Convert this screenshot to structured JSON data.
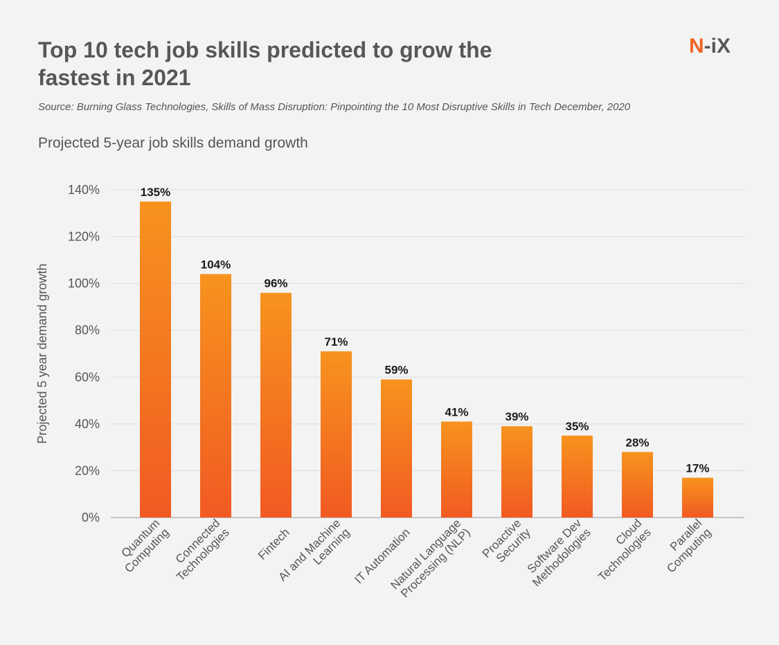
{
  "header": {
    "title": "Top 10 tech job skills predicted to grow the fastest in 2021",
    "source": "Source: Burning Glass Technologies, Skills of Mass Disruption: Pinpointing the 10 Most Disruptive Skills in Tech December, 2020",
    "subtitle": "Projected 5-year job skills demand growth",
    "logo_left": "N",
    "logo_right": "-iX"
  },
  "colors": {
    "bar_top": "#f7931e",
    "bar_bottom": "#f15a22",
    "gridline": "#dddddd",
    "axis": "#999999",
    "logo_accent": "#f26422"
  },
  "chart_data": {
    "type": "bar",
    "categories": [
      [
        "Quantum",
        "Computing"
      ],
      [
        "Connected",
        "Technologies"
      ],
      [
        "Fintech"
      ],
      [
        "AI and Machine",
        "Learning"
      ],
      [
        "IT Automation"
      ],
      [
        "Natural Language",
        "Processing (NLP)"
      ],
      [
        "Proactive",
        "Security"
      ],
      [
        "Software Dev",
        "Methodologies"
      ],
      [
        "Cloud",
        "Technologies"
      ],
      [
        "Parallel",
        "Computing"
      ]
    ],
    "values": [
      135,
      104,
      96,
      71,
      59,
      41,
      39,
      35,
      28,
      17
    ],
    "data_labels": [
      "135%",
      "104%",
      "96%",
      "71%",
      "59%",
      "41%",
      "39%",
      "35%",
      "28%",
      "17%"
    ],
    "yticks": [
      0,
      20,
      40,
      60,
      80,
      100,
      120,
      140
    ],
    "ytick_labels": [
      "0%",
      "20%",
      "40%",
      "60%",
      "80%",
      "100%",
      "120%",
      "140%"
    ],
    "ylim": [
      0,
      140
    ],
    "ylabel": "Projected 5 year demand growth",
    "xlabel": "",
    "grid": true
  }
}
